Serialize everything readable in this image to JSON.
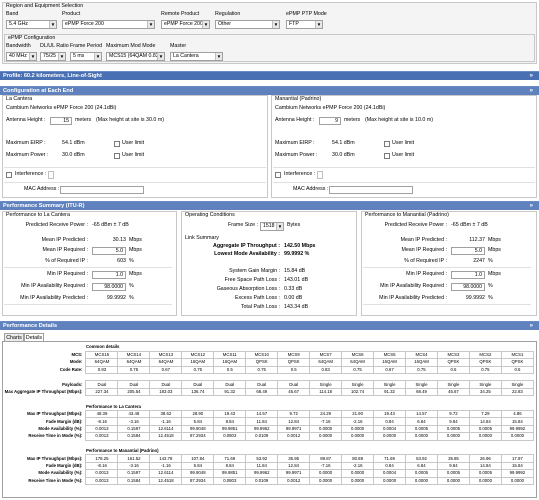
{
  "region": {
    "legend": "Region and Equipment Selection",
    "band_label": "Band",
    "band_value": "5.4 GHz",
    "product_label": "Product",
    "product_value": "ePMP Force 200",
    "remote_product_label": "Remote Product",
    "remote_product_value": "ePMP Force 200",
    "regulation_label": "Regulation",
    "regulation_value": "Other",
    "ptp_mode_label": "ePMP PTP Mode",
    "ptp_mode_value": "FTP"
  },
  "config": {
    "legend": "ePMP Configuration",
    "bandwidth_label": "Bandwidth",
    "bandwidth_value": "40 MHz",
    "ratio_label": "DL/UL Ratio",
    "ratio_value": "75/25",
    "frame_label": "Frame Period",
    "frame_value": "5 ms",
    "mod_label": "Maximum Mod Mode",
    "mod_value": "MCS15 (64QAM 0.83)",
    "master_label": "Master",
    "master_value": "La Cantera"
  },
  "profile_bar": "Profile: 60.2 kilometers, Line-of-Sight",
  "config_end_bar": "Configuration at Each End",
  "ends": [
    {
      "site": "La Cantera",
      "equip": "Cambium Networks ePMP Force 200 (24.1dBi)",
      "height_label": "Antenna Height :",
      "height_value": "15",
      "height_unit": "meters",
      "height_max": "(Max height at site is 30.0 m)",
      "erp_label": "Maximum EIRP :",
      "erp_value": "54.1 dBm",
      "power_label": "Maximum Power :",
      "power_value": "30.0 dBm",
      "user_limit": "User limit",
      "interference": "Interference :",
      "mac": "MAC Address :"
    },
    {
      "site": "Manantial (Padrino)",
      "equip": "Cambium Networks ePMP Force 200 (24.1dBi)",
      "height_label": "Antenna Height :",
      "height_value": "9",
      "height_unit": "meters",
      "height_max": "(Max height at site is 10.0 m)",
      "erp_label": "Maximum EIRP :",
      "erp_value": "54.1 dBm",
      "power_label": "Maximum Power :",
      "power_value": "30.0 dBm",
      "user_limit": "User limit",
      "interference": "Interference :",
      "mac": "MAC Address :"
    }
  ],
  "perf_summary_bar": "Performance Summary (ITU-R)",
  "perf_left": {
    "title": "Performance to La Cantera",
    "rows": [
      {
        "label": "Predicted Receive Power :",
        "value": "-65 dBm ± 7 dB"
      },
      {
        "label": "Mean IP Predicted :",
        "value": "30.13",
        "unit": "Mbps"
      },
      {
        "label": "Mean IP Required :",
        "value": "5.0",
        "unit": "Mbps",
        "input": true
      },
      {
        "label": "% of Required IP :",
        "value": "603",
        "unit": "%"
      },
      {
        "label": "Min IP Required :",
        "value": "1.0",
        "unit": "Mbps",
        "input": true
      },
      {
        "label": "Min IP Availability Required :",
        "value": "98.0000",
        "unit": "%",
        "input": true
      },
      {
        "label": "Min IP Availability Predicted :",
        "value": "99.9992",
        "unit": "%"
      }
    ]
  },
  "perf_right": {
    "title": "Performance to Manantial (Padrino)",
    "rows": [
      {
        "label": "Predicted Receive Power :",
        "value": "-65 dBm ± 7 dB"
      },
      {
        "label": "Mean IP Predicted :",
        "value": "112.37",
        "unit": "Mbps"
      },
      {
        "label": "Mean IP Required :",
        "value": "5.0",
        "unit": "Mbps",
        "input": true
      },
      {
        "label": "% of Required IP :",
        "value": "2247",
        "unit": "%"
      },
      {
        "label": "Min IP Required :",
        "value": "1.0",
        "unit": "Mbps",
        "input": true
      },
      {
        "label": "Min IP Availability Required :",
        "value": "98.0000",
        "unit": "%",
        "input": true
      },
      {
        "label": "Min IP Availability Predicted :",
        "value": "99.9992",
        "unit": "%"
      }
    ]
  },
  "operating": {
    "title": "Operating Conditions",
    "frame_size_label": "Frame Size :",
    "frame_size_value": "1518",
    "frame_size_unit": "Bytes",
    "link_summary": "Link Summary",
    "agg_label": "Aggregate IP Throughput :",
    "agg_value": "142.50 Mbps",
    "lowest_label": "Lowest Mode Availability :",
    "lowest_value": "99.9992 %",
    "rows": [
      {
        "label": "System Gain Margin :",
        "value": "15.84 dB"
      },
      {
        "label": "Free Space Path Loss :",
        "value": "143.01 dB"
      },
      {
        "label": "Gaseous Absorption Loss :",
        "value": "0.33 dB"
      },
      {
        "label": "Excess Path Loss :",
        "value": "0.00 dB"
      },
      {
        "label": "Total Path Loss :",
        "value": "143.34 dB"
      }
    ]
  },
  "perf_details_bar": "Performance Details",
  "tabs": [
    "Charts",
    "Details"
  ],
  "details": {
    "common_title": "Common details",
    "mcs_label": "MCS:",
    "mcs": [
      "MCS15",
      "MCS14",
      "MCS13",
      "MCS12",
      "MCS11",
      "MCS10",
      "MCS9",
      "MCS7",
      "MCS6",
      "MCS5",
      "MCS4",
      "MCS3",
      "MCS2",
      "MCS1"
    ],
    "mode_label": "Mode:",
    "mode": [
      "64QAM",
      "64QAM",
      "64QAM",
      "16QAM",
      "16QAM",
      "QPSK",
      "QPSK",
      "64QAM",
      "64QAM",
      "16QAM",
      "16QAM",
      "QPSK",
      "QPSK",
      "QPSK"
    ],
    "rate_label": "Code Rate:",
    "rate": [
      "0.83",
      "0.75",
      "0.67",
      "0.75",
      "0.5",
      "0.75",
      "0.5",
      "0.83",
      "0.75",
      "0.67",
      "0.75",
      "0.5",
      "0.75",
      "0.5"
    ],
    "payloads_label": "Payloads:",
    "payloads": [
      "Dual",
      "Dual",
      "Dual",
      "Dual",
      "Dual",
      "Dual",
      "Dual",
      "Single",
      "Single",
      "Single",
      "Single",
      "Single",
      "Single",
      "Single"
    ],
    "agg_label": "Max Aggregate IP Throughput (Mbps):",
    "agg": [
      "227.34",
      "205.54",
      "183.03",
      "136.74",
      "91.32",
      "68.49",
      "45.67",
      "114.18",
      "102.74",
      "91.32",
      "68.49",
      "45.67",
      "34.25",
      "22.83"
    ],
    "lac_title": "Performance to La Cantera",
    "mgbps_label": "Max IP Throughput (Mbps):",
    "fade_label": "Fade Margin (dB):",
    "avail_label": "Mode Availability (%):",
    "recv_label": "Receive Time in Mode (%):",
    "lac_mbps": [
      "48.39",
      "43.48",
      "38.62",
      "28.90",
      "19.43",
      "14.57",
      "9.72",
      "24.29",
      "21.90",
      "19.43",
      "14.57",
      "9.72",
      "7.29",
      "4.86"
    ],
    "lac_fade": [
      "-8.16",
      "-3.16",
      "-1.16",
      "5.84",
      "8.84",
      "11.84",
      "12.84",
      "-7.16",
      "-2.16",
      "0.84",
      "6.84",
      "9.84",
      "14.84",
      "15.84"
    ],
    "lac_avail": [
      "0.0013",
      "0.1597",
      "12.6114",
      "99.9048",
      "99.9851",
      "99.9962",
      "99.9971",
      "0.0000",
      "0.0000",
      "0.0004",
      "0.0005",
      "0.0005",
      "0.0005",
      "99.9992"
    ],
    "lac_recv": [
      "0.0013",
      "0.1584",
      "12.4518",
      "87.2934",
      "0.0803",
      "0.0109",
      "0.0012",
      "0.0000",
      "0.0000",
      "0.0000",
      "0.0000",
      "0.0000",
      "0.0000",
      "0.0000"
    ],
    "man_title": "Performance to Manantial (Padrino)",
    "man_mbps": [
      "178.25",
      "161.52",
      "143.78",
      "107.84",
      "71.69",
      "53.92",
      "35.95",
      "89.87",
      "80.88",
      "71.69",
      "53.92",
      "35.95",
      "26.96",
      "17.97"
    ],
    "man_fade": [
      "-8.16",
      "-3.16",
      "-1.16",
      "5.84",
      "8.84",
      "11.84",
      "12.84",
      "-7.16",
      "-2.16",
      "0.84",
      "6.84",
      "9.84",
      "14.84",
      "15.84"
    ],
    "man_avail": [
      "0.0013",
      "0.1597",
      "12.6114",
      "99.9048",
      "99.9851",
      "99.9962",
      "99.9971",
      "0.0000",
      "0.0000",
      "0.0004",
      "0.0005",
      "0.0005",
      "0.0005",
      "99.9992"
    ],
    "man_recv": [
      "0.0013",
      "0.1584",
      "12.4518",
      "87.2934",
      "0.0803",
      "0.0109",
      "0.0012",
      "0.0000",
      "0.0000",
      "0.0000",
      "0.0000",
      "0.0000",
      "0.0000",
      "0.0000"
    ]
  }
}
